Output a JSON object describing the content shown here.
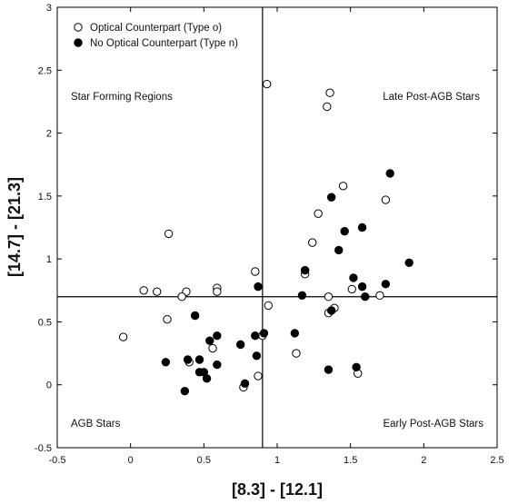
{
  "chart_data": {
    "type": "scatter",
    "xlabel": "[8.3] - [12.1]",
    "ylabel": "[14.7] - [21.3]",
    "xlim": [
      -0.5,
      2.5
    ],
    "ylim": [
      -0.5,
      3
    ],
    "x_ticks": [
      "-0.5",
      "0",
      "0.5",
      "1",
      "1.5",
      "2",
      "2.5"
    ],
    "y_ticks": [
      "-0.5",
      "0",
      "0.5",
      "1",
      "1.5",
      "2",
      "2.5",
      "3"
    ],
    "divider_x": 0.9,
    "divider_y": 0.7,
    "regions": [
      {
        "label": "Star Forming Regions",
        "quadrant": "top-left"
      },
      {
        "label": "Late Post-AGB Stars",
        "quadrant": "top-right"
      },
      {
        "label": "AGB Stars",
        "quadrant": "bottom-left"
      },
      {
        "label": "Early Post-AGB Stars",
        "quadrant": "bottom-right"
      }
    ],
    "legend_position": "top-left",
    "series": [
      {
        "name": "Optical Counterpart (Type o)",
        "marker": "open-circle",
        "color": "#000000",
        "points": [
          [
            0.93,
            2.39
          ],
          [
            1.36,
            2.32
          ],
          [
            1.34,
            2.21
          ],
          [
            1.45,
            1.58
          ],
          [
            1.74,
            1.47
          ],
          [
            1.28,
            1.36
          ],
          [
            0.26,
            1.2
          ],
          [
            1.24,
            1.13
          ],
          [
            0.85,
            0.9
          ],
          [
            1.19,
            0.88
          ],
          [
            0.09,
            0.75
          ],
          [
            0.18,
            0.74
          ],
          [
            0.38,
            0.74
          ],
          [
            0.59,
            0.77
          ],
          [
            0.59,
            0.74
          ],
          [
            0.35,
            0.7
          ],
          [
            1.35,
            0.7
          ],
          [
            1.51,
            0.76
          ],
          [
            1.7,
            0.71
          ],
          [
            0.94,
            0.63
          ],
          [
            1.39,
            0.61
          ],
          [
            1.35,
            0.57
          ],
          [
            0.25,
            0.52
          ],
          [
            -0.05,
            0.38
          ],
          [
            0.9,
            0.39
          ],
          [
            0.56,
            0.29
          ],
          [
            1.13,
            0.25
          ],
          [
            0.4,
            0.18
          ],
          [
            0.77,
            -0.02
          ],
          [
            0.87,
            0.07
          ],
          [
            1.55,
            0.09
          ]
        ]
      },
      {
        "name": "No Optical Counterpart (Type n)",
        "marker": "filled-circle",
        "color": "#000000",
        "points": [
          [
            1.77,
            1.68
          ],
          [
            1.37,
            1.49
          ],
          [
            1.58,
            1.25
          ],
          [
            1.46,
            1.22
          ],
          [
            1.42,
            1.07
          ],
          [
            1.9,
            0.97
          ],
          [
            1.19,
            0.91
          ],
          [
            1.52,
            0.85
          ],
          [
            1.58,
            0.78
          ],
          [
            1.74,
            0.8
          ],
          [
            0.87,
            0.78
          ],
          [
            1.17,
            0.71
          ],
          [
            1.6,
            0.7
          ],
          [
            1.37,
            0.59
          ],
          [
            0.44,
            0.55
          ],
          [
            0.59,
            0.39
          ],
          [
            0.75,
            0.32
          ],
          [
            0.85,
            0.39
          ],
          [
            0.91,
            0.41
          ],
          [
            1.12,
            0.41
          ],
          [
            0.54,
            0.35
          ],
          [
            0.86,
            0.23
          ],
          [
            0.24,
            0.18
          ],
          [
            0.39,
            0.2
          ],
          [
            0.47,
            0.2
          ],
          [
            0.59,
            0.16
          ],
          [
            0.47,
            0.1
          ],
          [
            0.5,
            0.1
          ],
          [
            0.52,
            0.05
          ],
          [
            0.78,
            0.01
          ],
          [
            0.37,
            -0.05
          ],
          [
            1.35,
            0.12
          ],
          [
            1.54,
            0.14
          ]
        ]
      }
    ]
  }
}
